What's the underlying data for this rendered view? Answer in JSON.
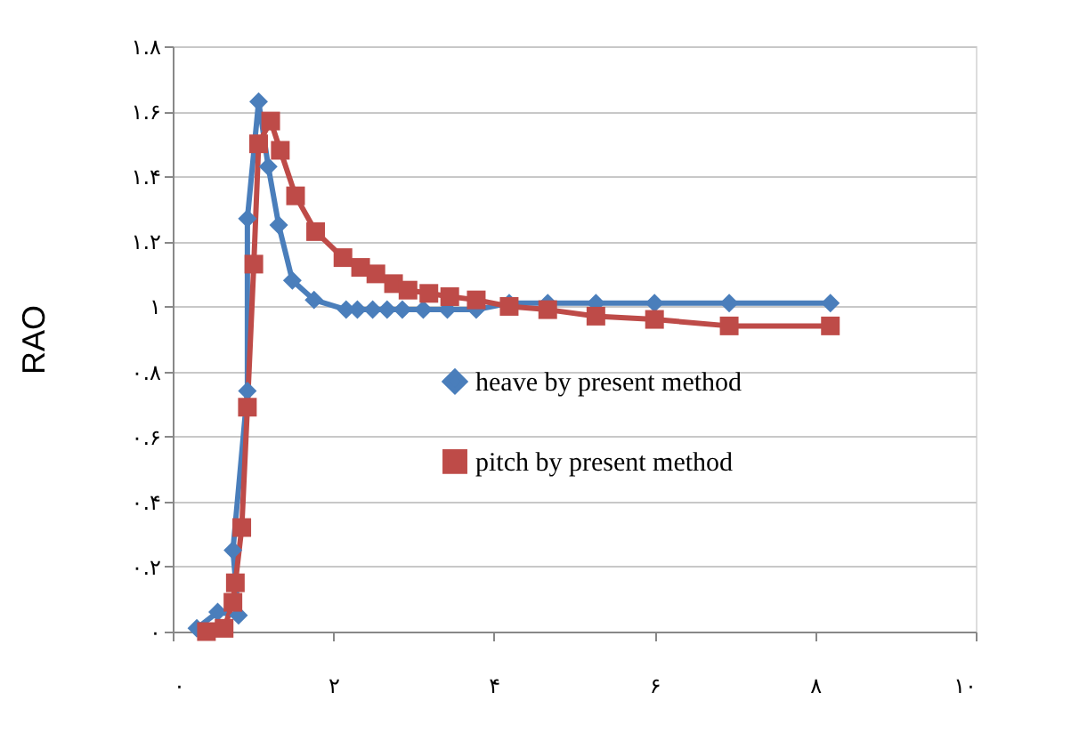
{
  "chart_data": {
    "type": "line",
    "ylabel": "RAO",
    "xlim": [
      0,
      10
    ],
    "ylim": [
      0,
      1.8
    ],
    "xticks": [
      {
        "value": 0,
        "label": "۰"
      },
      {
        "value": 2,
        "label": "۲"
      },
      {
        "value": 4,
        "label": "۴"
      },
      {
        "value": 6,
        "label": "۶"
      },
      {
        "value": 8,
        "label": "۸"
      },
      {
        "value": 10,
        "label": "۱۰"
      }
    ],
    "yticks": [
      {
        "value": 0,
        "label": "۰"
      },
      {
        "value": 0.2,
        "label": "۰.۲"
      },
      {
        "value": 0.4,
        "label": "۰.۴"
      },
      {
        "value": 0.6,
        "label": "۰.۶"
      },
      {
        "value": 0.8,
        "label": "۰.۸"
      },
      {
        "value": 1,
        "label": "۱"
      },
      {
        "value": 1.2,
        "label": "۱.۲"
      },
      {
        "value": 1.4,
        "label": "۱.۴"
      },
      {
        "value": 1.6,
        "label": "۱.۶"
      },
      {
        "value": 1.8,
        "label": "۱.۸"
      }
    ],
    "grid": "y",
    "legend": "right",
    "line_style": "solid",
    "series": [
      {
        "name": "heave by present method",
        "color": "#4a7ebb",
        "marker": "diamond",
        "x": [
          0.3,
          0.56,
          0.82,
          0.75,
          0.93,
          0.93,
          1.07,
          1.19,
          1.32,
          1.49,
          1.76,
          2.16,
          2.3,
          2.49,
          2.67,
          2.86,
          3.12,
          3.42,
          3.78,
          4.19,
          4.67,
          5.27,
          6.0,
          6.93,
          8.19
        ],
        "values": [
          0.01,
          0.06,
          0.05,
          0.25,
          0.74,
          1.27,
          1.63,
          1.43,
          1.25,
          1.08,
          1.02,
          0.99,
          0.99,
          0.99,
          0.99,
          0.99,
          0.99,
          0.99,
          0.99,
          1.01,
          1.01,
          1.01,
          1.01,
          1.01,
          1.01
        ]
      },
      {
        "name": "pitch by present method",
        "color": "#be4b48",
        "marker": "square",
        "x": [
          0.42,
          0.64,
          0.75,
          0.78,
          0.86,
          0.93,
          1.01,
          1.07,
          1.22,
          1.34,
          1.53,
          1.78,
          2.12,
          2.34,
          2.53,
          2.75,
          2.93,
          3.19,
          3.45,
          3.78,
          4.19,
          4.67,
          5.27,
          6.0,
          6.93,
          8.19
        ],
        "values": [
          0.0,
          0.01,
          0.09,
          0.15,
          0.32,
          0.69,
          1.13,
          1.5,
          1.57,
          1.48,
          1.34,
          1.23,
          1.15,
          1.12,
          1.1,
          1.07,
          1.05,
          1.04,
          1.03,
          1.02,
          1.0,
          0.99,
          0.97,
          0.96,
          0.94,
          0.94
        ]
      }
    ]
  }
}
